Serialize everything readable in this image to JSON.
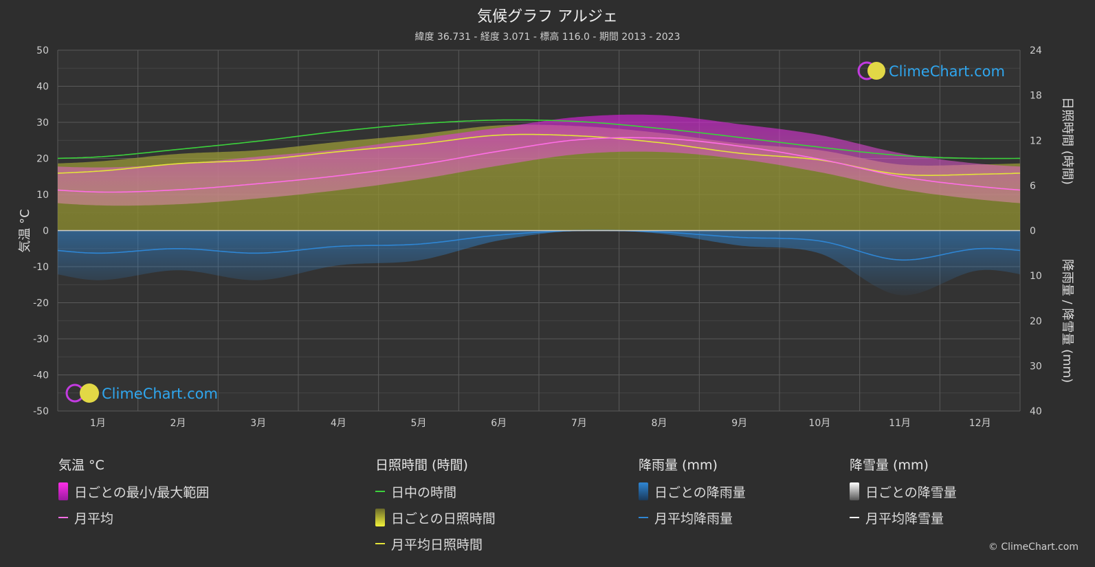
{
  "header": {
    "title": "気候グラフ アルジェ",
    "subtitle": "緯度 36.731 - 経度 3.071 - 標高 116.0 - 期間 2013 - 2023"
  },
  "axes": {
    "left_label": "気温 °C",
    "right_top_label": "日照時間 (時間)",
    "right_bottom_label": "降雨量 / 降雪量 (mm)"
  },
  "watermark": {
    "text": "ClimeChart.com"
  },
  "legend": {
    "temp": {
      "header": "気温 °C",
      "items": [
        "日ごとの最小/最大範囲",
        "月平均"
      ]
    },
    "sun": {
      "header": "日照時間 (時間)",
      "items": [
        "日中の時間",
        "日ごとの日照時間",
        "月平均日照時間"
      ]
    },
    "rain": {
      "header": "降雨量 (mm)",
      "items": [
        "日ごとの降雨量",
        "月平均降雨量"
      ]
    },
    "snow": {
      "header": "降雪量 (mm)",
      "items": [
        "日ごとの降雪量",
        "月平均降雪量"
      ]
    }
  },
  "copyright": "© ClimeChart.com",
  "colors": {
    "background": "#2e2e2e",
    "daylight": "#3cd23c",
    "sunshine": "#e4e43a",
    "temp_avg": "#ff6ee6",
    "temp_range": "#d81edc",
    "rain": "#2f86d4",
    "snow": "#ffffff",
    "brand": "#2fa6ee"
  },
  "chart_data": {
    "type": "line",
    "categories": [
      "1月",
      "2月",
      "3月",
      "4月",
      "5月",
      "6月",
      "7月",
      "8月",
      "9月",
      "10月",
      "11月",
      "12月"
    ],
    "temp_axis": {
      "ylim": [
        -50,
        50
      ],
      "ticks": [
        50,
        40,
        30,
        20,
        10,
        0,
        -10,
        -20,
        -30,
        -40,
        -50
      ]
    },
    "sunshine_axis": {
      "ylim": [
        0,
        24
      ],
      "ticks": [
        24,
        18,
        12,
        6,
        0
      ]
    },
    "precip_axis": {
      "ylim": [
        0,
        40
      ],
      "ticks": [
        0,
        10,
        20,
        30,
        40
      ]
    },
    "series": [
      {
        "name": "日中の時間",
        "unit": "hours",
        "values": [
          9.8,
          10.8,
          11.9,
          13.2,
          14.2,
          14.7,
          14.5,
          13.6,
          12.4,
          11.1,
          10.0,
          9.6
        ]
      },
      {
        "name": "月平均日照時間",
        "unit": "hours",
        "values": [
          7.9,
          8.9,
          9.4,
          10.5,
          11.5,
          12.7,
          12.6,
          11.7,
          10.3,
          9.4,
          7.5,
          7.5
        ]
      },
      {
        "name": "月平均",
        "unit": "°C",
        "values": [
          10.7,
          11.3,
          13.0,
          15.2,
          18.2,
          22.0,
          25.2,
          25.6,
          23.4,
          19.8,
          15.0,
          12.2
        ]
      },
      {
        "name": "日ごとの最小/最大範囲",
        "unit": "°C",
        "min": [
          7.0,
          7.3,
          8.9,
          11.2,
          14.2,
          18.0,
          21.2,
          21.8,
          19.8,
          16.2,
          11.5,
          8.6
        ],
        "max": [
          17.5,
          18.5,
          20.5,
          22.5,
          25.5,
          28.5,
          31.5,
          32.0,
          29.5,
          26.5,
          21.5,
          18.5
        ]
      },
      {
        "name": "月平均降雨量",
        "unit": "mm",
        "values": [
          5.0,
          4.0,
          5.0,
          3.5,
          3.0,
          1.0,
          0.0,
          0.3,
          1.5,
          2.3,
          6.5,
          4.0
        ]
      },
      {
        "name": "月平均降雪量",
        "unit": "mm",
        "values": [
          0,
          0,
          0,
          0,
          0,
          0,
          0,
          0,
          0,
          0,
          0,
          0
        ]
      }
    ]
  }
}
